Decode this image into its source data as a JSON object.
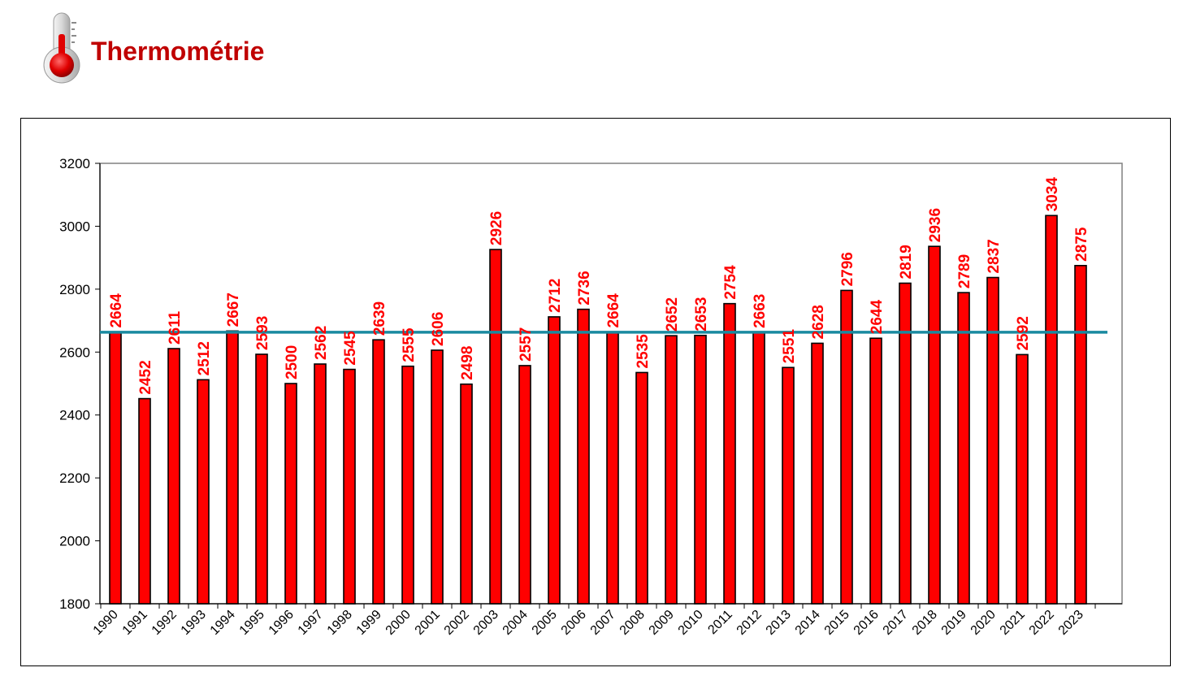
{
  "header": {
    "title": "Thermométrie",
    "icon": "thermometer-icon",
    "title_color": "#c00000"
  },
  "chart_data": {
    "type": "bar",
    "title": "",
    "xlabel": "",
    "ylabel": "",
    "ylim": [
      1800,
      3200
    ],
    "yticks": [
      1800,
      2000,
      2200,
      2400,
      2600,
      2800,
      3000,
      3200
    ],
    "grid": false,
    "legend": "none",
    "categories": [
      "1990",
      "1991",
      "1992",
      "1993",
      "1994",
      "1995",
      "1996",
      "1997",
      "1998",
      "1999",
      "2000",
      "2001",
      "2002",
      "2003",
      "2004",
      "2005",
      "2006",
      "2007",
      "2008",
      "2009",
      "2010",
      "2011",
      "2012",
      "2013",
      "2014",
      "2015",
      "2016",
      "2017",
      "2018",
      "2019",
      "2020",
      "2021",
      "2022",
      "2023"
    ],
    "series": [
      {
        "values": [
          2664,
          2452,
          2611,
          2512,
          2667,
          2593,
          2500,
          2562,
          2545,
          2639,
          2555,
          2606,
          2498,
          2926,
          2557,
          2712,
          2736,
          2664,
          2535,
          2652,
          2653,
          2754,
          2663,
          2551,
          2628,
          2796,
          2644,
          2819,
          2936,
          2789,
          2837,
          2592,
          3034,
          2875
        ],
        "color": "#ff0000"
      }
    ],
    "reference_line": {
      "value": 2663,
      "color": "#1a8aa0"
    },
    "data_label_color": "#ff0000"
  }
}
